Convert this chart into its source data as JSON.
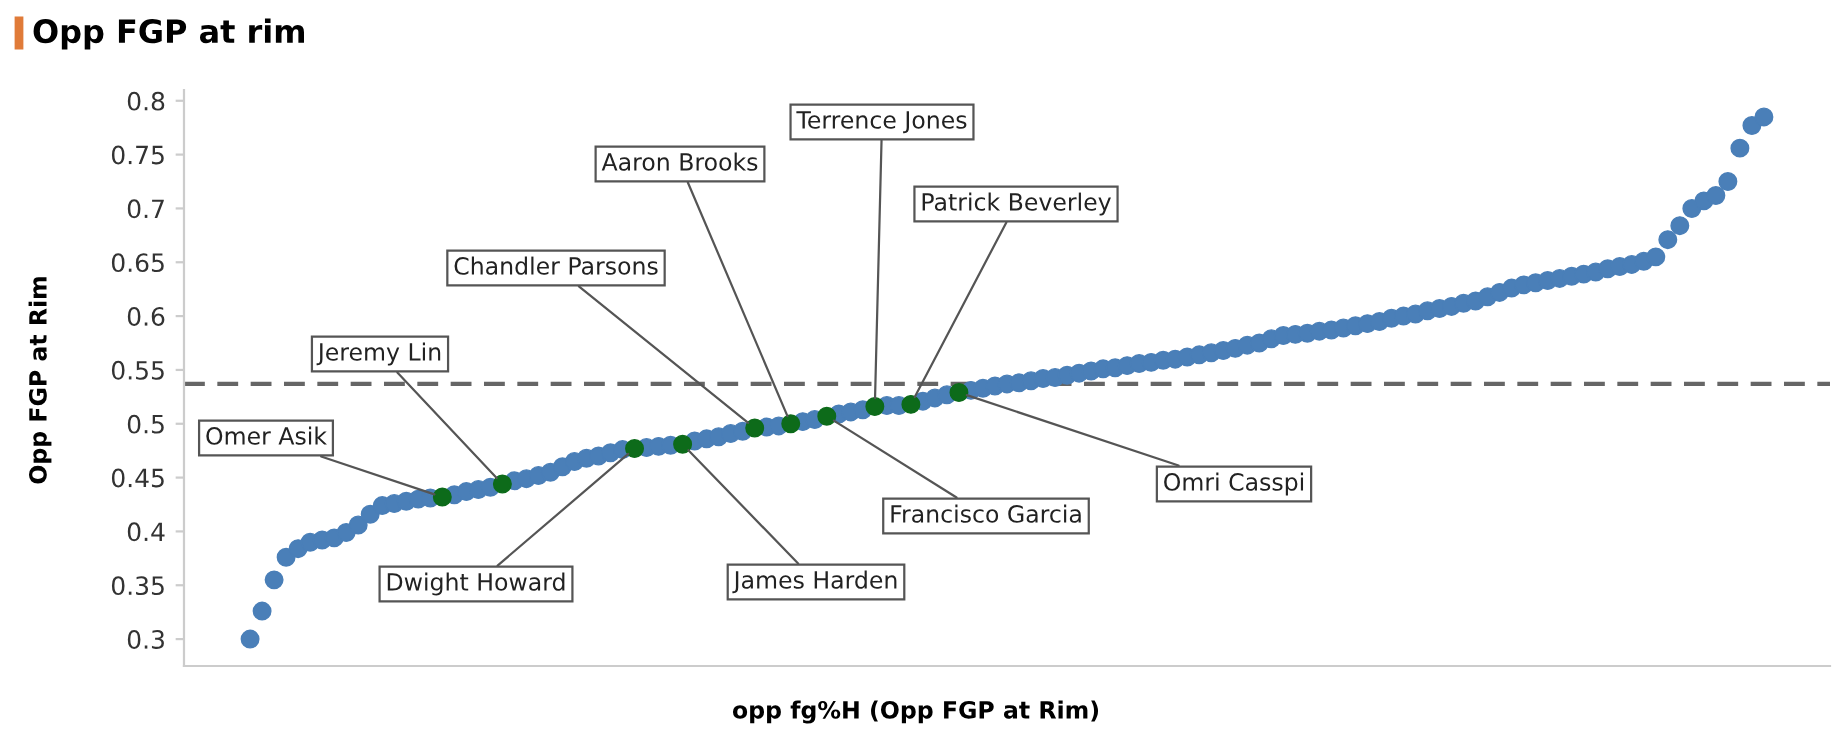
{
  "chart_data": {
    "type": "scatter",
    "title": "Opp FGP at rim",
    "xlabel": "opp fg%H (Opp FGP at Rim)",
    "ylabel": "Opp FGP at Rim",
    "categories": [
      null,
      null,
      null,
      null,
      null,
      null,
      null,
      null,
      null,
      null,
      null,
      null,
      null,
      null,
      null,
      null,
      null,
      null,
      null,
      null,
      null,
      null,
      null,
      null,
      null,
      null,
      null,
      null,
      null,
      null,
      null,
      null,
      null,
      null,
      null,
      null,
      null,
      null,
      null,
      null,
      null,
      null,
      null,
      null,
      null,
      null,
      null,
      null,
      null,
      null,
      null,
      null,
      null,
      null,
      null,
      null,
      null,
      null,
      null,
      null,
      null,
      null,
      null,
      null,
      null,
      null,
      null,
      null,
      null,
      null,
      null,
      null,
      null,
      null,
      null,
      null,
      null,
      null,
      null,
      null,
      null,
      null,
      null,
      null,
      null,
      null,
      null,
      null,
      null,
      null,
      null,
      null,
      null,
      null,
      null,
      null,
      null,
      null,
      null,
      null,
      null,
      null,
      null,
      null,
      null,
      null,
      null,
      null,
      null,
      null,
      null,
      null,
      null,
      null,
      null,
      null,
      null,
      null,
      null,
      null,
      null,
      null,
      null,
      null,
      null,
      null,
      null,
      null,
      null,
      null,
      null,
      null,
      null,
      null,
      null,
      null,
      null
    ],
    "series": [
      {
        "color": "#4a7fb8",
        "values": [
          null,
          null,
          null,
          null,
          null,
          0.3,
          0.326,
          0.355,
          0.376,
          0.384,
          0.39,
          0.392,
          0.394,
          0.399,
          0.406,
          0.416,
          0.424,
          0.426,
          0.428,
          0.43,
          0.431,
          null,
          0.434,
          0.437,
          0.439,
          0.441,
          null,
          0.447,
          0.449,
          0.452,
          0.455,
          0.46,
          0.465,
          0.468,
          0.47,
          0.473,
          0.476,
          null,
          0.478,
          0.479,
          0.48,
          null,
          0.484,
          0.486,
          0.488,
          0.491,
          0.493,
          null,
          0.497,
          0.498,
          null,
          0.502,
          0.504,
          null,
          0.509,
          0.511,
          0.513,
          null,
          0.517,
          0.517,
          null,
          0.521,
          0.524,
          0.527,
          null,
          0.531,
          0.533,
          0.535,
          0.537,
          0.538,
          0.54,
          0.542,
          0.543,
          0.545,
          0.547,
          0.549,
          0.551,
          0.552,
          0.554,
          0.556,
          0.557,
          0.559,
          0.56,
          0.562,
          0.564,
          0.566,
          0.568,
          0.57,
          0.573,
          0.575,
          0.579,
          0.582,
          0.583,
          0.584,
          0.586,
          0.587,
          0.589,
          0.591,
          0.593,
          0.595,
          0.598,
          0.6,
          0.602,
          0.605,
          0.607,
          0.609,
          0.612,
          0.614,
          0.618,
          0.622,
          0.626,
          0.629,
          0.631,
          0.633,
          0.635,
          0.637,
          0.639,
          0.641,
          0.644,
          0.646,
          0.648,
          0.651,
          0.655,
          0.671,
          0.684,
          0.7,
          0.707,
          0.712,
          0.725,
          0.756,
          0.777,
          0.785,
          null,
          null,
          null,
          null,
          null
        ]
      },
      {
        "color": "#0d6b1a",
        "values": [
          null,
          null,
          null,
          null,
          null,
          null,
          null,
          null,
          null,
          null,
          null,
          null,
          null,
          null,
          null,
          null,
          null,
          null,
          null,
          null,
          null,
          0.432,
          null,
          null,
          null,
          null,
          0.444,
          null,
          null,
          null,
          null,
          null,
          null,
          null,
          null,
          null,
          null,
          0.477,
          null,
          null,
          null,
          0.481,
          null,
          null,
          null,
          null,
          null,
          0.496,
          null,
          null,
          0.5,
          null,
          null,
          0.507,
          null,
          null,
          null,
          0.516,
          null,
          null,
          0.518,
          null,
          null,
          null,
          0.529,
          null,
          null,
          null,
          null,
          null,
          null,
          null,
          null,
          null,
          null,
          null,
          null,
          null,
          null,
          null,
          null,
          null,
          null,
          null,
          null,
          null,
          null,
          null,
          null,
          null,
          null,
          null,
          null,
          null,
          null,
          null,
          null,
          null,
          null,
          null,
          null,
          null,
          null,
          null,
          null,
          null,
          null,
          null,
          null,
          null,
          null,
          null,
          null,
          null,
          null,
          null,
          null,
          null,
          null,
          null,
          null,
          null,
          null,
          null,
          null,
          null,
          null,
          null,
          null,
          null,
          null,
          null,
          null,
          null,
          null,
          null,
          null
        ]
      }
    ],
    "annotations": [
      "Omer Asik",
      "Jeremy Lin",
      "Dwight Howard",
      "James Harden",
      "Chandler Parsons",
      "Aaron Brooks",
      "Francisco Garcia",
      "Terrence Jones",
      "Patrick Beverley",
      "Omri Casspi"
    ],
    "ref_lines": [
      {
        "axis": "y",
        "value": 0.537,
        "color": "#666666",
        "line_style": "dashed"
      }
    ],
    "ylim": [
      0.275,
      0.81
    ],
    "yticks": [
      0.3,
      0.35,
      0.4,
      0.45,
      0.5,
      0.55,
      0.6,
      0.65,
      0.7,
      0.75,
      0.8
    ],
    "tick_labels": "y",
    "grid": false,
    "marker": "circle"
  }
}
